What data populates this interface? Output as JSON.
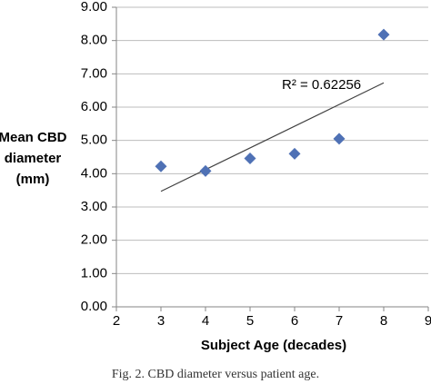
{
  "chart_data": {
    "type": "scatter",
    "ylabel": [
      "Mean CBD",
      "diameter",
      "(mm)"
    ],
    "xlabel": "Subject Age (decades)",
    "caption": "Fig. 2. CBD diameter versus patient age.",
    "annotation": "R² = 0.62256",
    "series": [
      {
        "color": "#4f71b5",
        "x": [
          3,
          4,
          5,
          6,
          7,
          8
        ],
        "values": [
          4.22,
          4.08,
          4.46,
          4.6,
          5.05,
          8.18
        ]
      }
    ],
    "trendline": {
      "color": "#404040",
      "x": [
        3,
        8
      ],
      "values": [
        3.47,
        6.73
      ]
    },
    "xlim": [
      2,
      9
    ],
    "xticks": [
      2,
      3,
      4,
      5,
      6,
      7,
      8,
      9
    ],
    "ylim": [
      0,
      9
    ],
    "yticks": [
      {
        "value": 0,
        "label": "0.00"
      },
      {
        "value": 1,
        "label": "1.00"
      },
      {
        "value": 2,
        "label": "2.00"
      },
      {
        "value": 3,
        "label": "3.00"
      },
      {
        "value": 4,
        "label": "4.00"
      },
      {
        "value": 5,
        "label": "5.00"
      },
      {
        "value": 6,
        "label": "6.00"
      },
      {
        "value": 7,
        "label": "7.00"
      },
      {
        "value": 8,
        "label": "8.00"
      },
      {
        "value": 9,
        "label": "9.00"
      }
    ],
    "grid": true
  }
}
